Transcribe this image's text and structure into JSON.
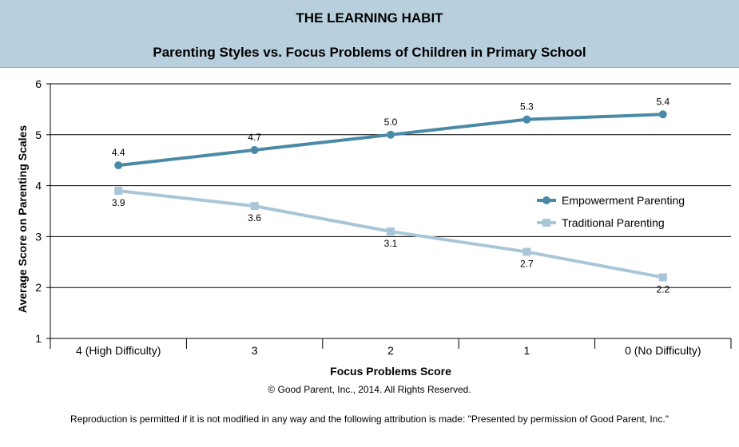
{
  "header": {
    "title": "THE LEARNING HABIT",
    "subtitle": "Parenting Styles vs. Focus Problems of Children in Primary School"
  },
  "footer": {
    "copyright": "© Good Parent, Inc., 2014. All Rights Reserved.",
    "reproduction": "Reproduction is permitted if it is not modified in any way and the following attribution is made: \"Presented by permission of Good Parent, Inc.\""
  },
  "colors": {
    "header_bg": "#b8cfdd",
    "empowerment": "#4a8aa6",
    "traditional": "#a9c6d8"
  },
  "chart_data": {
    "type": "line",
    "categories": [
      "4 (High Difficulty)",
      "3",
      "2",
      "1",
      "0 (No Difficulty)"
    ],
    "xlabel": "Focus Problems Score",
    "ylabel": "Average Score on Parenting Scales",
    "ylim": [
      1,
      6
    ],
    "yticks": [
      1,
      2,
      3,
      4,
      5,
      6
    ],
    "grid": true,
    "legend_position": "right",
    "series": [
      {
        "name": "Empowerment Parenting",
        "values": [
          4.4,
          4.7,
          5.0,
          5.3,
          5.4
        ],
        "labels": [
          "4.4",
          "4.7",
          "5.0",
          "5.3",
          "5.4"
        ],
        "marker": "circle"
      },
      {
        "name": "Traditional Parenting",
        "values": [
          3.9,
          3.6,
          3.1,
          2.7,
          2.2
        ],
        "labels": [
          "3.9",
          "3.6",
          "3.1",
          "2.7",
          "2.2"
        ],
        "marker": "square"
      }
    ]
  }
}
